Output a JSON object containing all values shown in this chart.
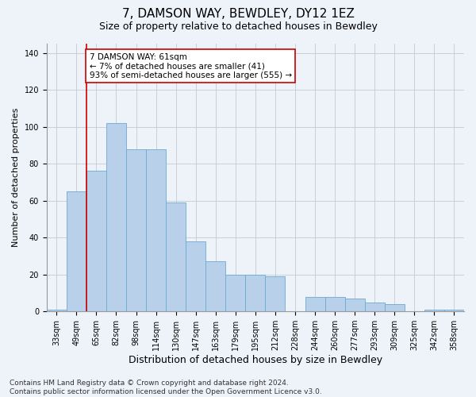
{
  "title": "7, DAMSON WAY, BEWDLEY, DY12 1EZ",
  "subtitle": "Size of property relative to detached houses in Bewdley",
  "xlabel": "Distribution of detached houses by size in Bewdley",
  "ylabel": "Number of detached properties",
  "categories": [
    "33sqm",
    "49sqm",
    "65sqm",
    "82sqm",
    "98sqm",
    "114sqm",
    "130sqm",
    "147sqm",
    "163sqm",
    "179sqm",
    "195sqm",
    "212sqm",
    "228sqm",
    "244sqm",
    "260sqm",
    "277sqm",
    "293sqm",
    "309sqm",
    "325sqm",
    "342sqm",
    "358sqm"
  ],
  "values": [
    1,
    65,
    76,
    102,
    88,
    88,
    59,
    38,
    27,
    20,
    20,
    19,
    0,
    8,
    8,
    7,
    5,
    4,
    0,
    1,
    1
  ],
  "bar_color": "#b8d0ea",
  "bar_edge_color": "#6aaad4",
  "vline_x": 1.5,
  "vline_color": "#cc0000",
  "annotation_text": "7 DAMSON WAY: 61sqm\n← 7% of detached houses are smaller (41)\n93% of semi-detached houses are larger (555) →",
  "annotation_box_facecolor": "#ffffff",
  "annotation_box_edgecolor": "#cc0000",
  "background_color": "#eef2f9",
  "ylim": [
    0,
    145
  ],
  "yticks": [
    0,
    20,
    40,
    60,
    80,
    100,
    120,
    140
  ],
  "footer": "Contains HM Land Registry data © Crown copyright and database right 2024.\nContains public sector information licensed under the Open Government Licence v3.0.",
  "title_fontsize": 11,
  "subtitle_fontsize": 9,
  "xlabel_fontsize": 9,
  "ylabel_fontsize": 8,
  "tick_fontsize": 7,
  "annotation_fontsize": 7.5,
  "footer_fontsize": 6.5
}
